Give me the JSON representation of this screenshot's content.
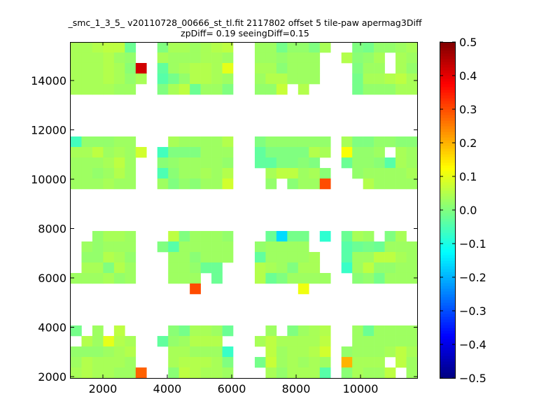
{
  "chart_data": {
    "type": "heatmap",
    "title": "_smc_1_3_5_ v20110728_00666_st_tl.fit 2117802 offset 5 tile-paw apermag3Diff",
    "subtitle": "zpDiff= 0.19 seeingDiff=0.15",
    "xlabel": "",
    "ylabel": "",
    "xlim": [
      1000,
      11760
    ],
    "ylim": [
      1943,
      15560
    ],
    "x_start": 1000,
    "dx": 336.25,
    "y_top": 15560,
    "dy": 425.5,
    "x_ticks": [
      2000,
      4000,
      6000,
      8000,
      10000
    ],
    "x_tick_labels": [
      "2000",
      "4000",
      "6000",
      "8000",
      "10000"
    ],
    "y_ticks": [
      2000,
      4000,
      6000,
      8000,
      10000,
      12000,
      14000
    ],
    "y_tick_labels": [
      "2000",
      "4000",
      "6000",
      "8000",
      "10000",
      "12000",
      "14000"
    ],
    "colormap": "jet",
    "clim": [
      -0.5,
      0.5
    ],
    "colorbar_ticks": [
      -0.5,
      -0.4,
      -0.3,
      -0.2,
      -0.1,
      0.0,
      0.1,
      0.2,
      0.3,
      0.4,
      0.5
    ],
    "colorbar_tick_labels": [
      "−0.5",
      "−0.4",
      "−0.3",
      "−0.2",
      "−0.1",
      "0.0",
      "0.1",
      "0.2",
      "0.3",
      "0.4",
      "0.5"
    ],
    "values": [
      [
        0.04,
        0.04,
        0.05,
        0.06,
        0.06,
        -0.02,
        null,
        null,
        0.0,
        0.04,
        0.04,
        0.03,
        0.04,
        0.05,
        0.06,
        null,
        null,
        0.03,
        0.03,
        -0.01,
        0.02,
        0.02,
        0.0,
        0.04,
        null,
        null,
        0.0,
        -0.01,
        0.02,
        0.02,
        0.03,
        0.04
      ],
      [
        0.04,
        0.04,
        0.04,
        0.05,
        0.03,
        0.02,
        null,
        null,
        0.04,
        0.03,
        0.03,
        0.03,
        0.04,
        0.04,
        0.03,
        null,
        null,
        0.03,
        0.03,
        0.02,
        0.03,
        0.03,
        0.03,
        null,
        null,
        0.05,
        0.01,
        0.02,
        0.04,
        null,
        0.04,
        0.03
      ],
      [
        0.04,
        0.04,
        0.04,
        0.05,
        0.04,
        0.01,
        0.42,
        null,
        -0.03,
        0.03,
        0.04,
        0.05,
        0.05,
        0.04,
        0.1,
        null,
        null,
        0.04,
        0.04,
        0.01,
        0.03,
        0.03,
        0.03,
        null,
        null,
        null,
        0.0,
        0.03,
        0.03,
        null,
        0.04,
        0.02
      ],
      [
        0.04,
        0.04,
        0.04,
        0.05,
        0.04,
        0.02,
        0.04,
        null,
        -0.04,
        -0.01,
        0.02,
        0.05,
        0.05,
        0.04,
        0.03,
        null,
        null,
        0.03,
        0.05,
        0.05,
        0.03,
        0.03,
        0.03,
        null,
        null,
        null,
        -0.01,
        0.04,
        0.04,
        0.05,
        0.06,
        0.04
      ],
      [
        0.04,
        0.04,
        0.04,
        0.04,
        0.03,
        0.03,
        null,
        null,
        0.0,
        0.04,
        0.06,
        -0.02,
        0.03,
        0.03,
        0.0,
        null,
        null,
        0.02,
        0.02,
        0.07,
        null,
        0.05,
        null,
        null,
        null,
        null,
        -0.01,
        0.02,
        0.02,
        0.02,
        0.04,
        0.04
      ],
      [
        null,
        null,
        null,
        null,
        null,
        null,
        null,
        null,
        null,
        null,
        null,
        null,
        null,
        null,
        null,
        null,
        null,
        null,
        null,
        null,
        null,
        null,
        null,
        null,
        null,
        null,
        null,
        null,
        null,
        null,
        null,
        null
      ],
      [
        null,
        null,
        null,
        null,
        null,
        null,
        null,
        null,
        null,
        null,
        null,
        null,
        null,
        null,
        null,
        null,
        null,
        null,
        null,
        null,
        null,
        null,
        null,
        null,
        null,
        null,
        null,
        null,
        null,
        null,
        null,
        null
      ],
      [
        null,
        null,
        null,
        null,
        null,
        null,
        null,
        null,
        null,
        null,
        null,
        null,
        null,
        null,
        null,
        null,
        null,
        null,
        null,
        null,
        null,
        null,
        null,
        null,
        null,
        null,
        null,
        null,
        null,
        null,
        null,
        null
      ],
      [
        null,
        null,
        null,
        null,
        null,
        null,
        null,
        null,
        null,
        null,
        null,
        null,
        null,
        null,
        null,
        null,
        null,
        null,
        null,
        null,
        null,
        null,
        null,
        null,
        null,
        null,
        null,
        null,
        null,
        null,
        null,
        null
      ],
      [
        -0.06,
        0.02,
        0.02,
        0.02,
        0.03,
        0.03,
        null,
        null,
        null,
        0.04,
        0.03,
        0.03,
        0.03,
        0.03,
        0.05,
        null,
        null,
        0.0,
        0.02,
        0.02,
        0.02,
        0.02,
        0.02,
        0.02,
        null,
        0.04,
        0.0,
        0.0,
        0.02,
        0.02,
        0.01,
        0.01
      ],
      [
        0.04,
        0.04,
        0.06,
        0.03,
        0.04,
        0.03,
        0.08,
        null,
        -0.06,
        0.0,
        0.0,
        0.0,
        0.03,
        0.03,
        0.03,
        null,
        null,
        -0.03,
        0.0,
        0.0,
        0.0,
        0.0,
        0.05,
        0.04,
        null,
        0.12,
        0.02,
        0.02,
        0.03,
        null,
        0.04,
        0.03
      ],
      [
        0.03,
        0.03,
        0.03,
        0.04,
        0.06,
        0.03,
        null,
        null,
        0.01,
        0.02,
        0.03,
        0.03,
        0.03,
        0.03,
        0.02,
        null,
        null,
        -0.03,
        -0.03,
        0.0,
        0.0,
        0.01,
        0.0,
        null,
        null,
        -0.02,
        0.02,
        0.02,
        0.01,
        -0.04,
        0.04,
        0.03
      ],
      [
        0.03,
        0.03,
        0.02,
        0.03,
        0.05,
        0.03,
        null,
        null,
        -0.05,
        0.01,
        0.03,
        0.03,
        0.04,
        0.03,
        0.05,
        null,
        null,
        null,
        0.04,
        0.06,
        0.06,
        0.03,
        0.04,
        0.01,
        null,
        null,
        0.02,
        0.03,
        0.03,
        0.03,
        0.03,
        0.04
      ],
      [
        0.03,
        0.03,
        0.03,
        0.04,
        0.03,
        0.03,
        null,
        null,
        0.03,
        0.0,
        0.02,
        0.01,
        0.03,
        0.03,
        0.08,
        null,
        null,
        null,
        0.02,
        null,
        0.01,
        0.03,
        0.03,
        0.3,
        null,
        null,
        null,
        0.05,
        0.03,
        0.03,
        0.03,
        0.03
      ],
      [
        null,
        null,
        null,
        null,
        null,
        null,
        null,
        null,
        null,
        null,
        null,
        null,
        null,
        null,
        null,
        null,
        null,
        null,
        null,
        null,
        null,
        null,
        null,
        null,
        null,
        null,
        null,
        null,
        null,
        null,
        null,
        null
      ],
      [
        null,
        null,
        null,
        null,
        null,
        null,
        null,
        null,
        null,
        null,
        null,
        null,
        null,
        null,
        null,
        null,
        null,
        null,
        null,
        null,
        null,
        null,
        null,
        null,
        null,
        null,
        null,
        null,
        null,
        null,
        null,
        null
      ],
      [
        null,
        null,
        null,
        null,
        null,
        null,
        null,
        null,
        null,
        null,
        null,
        null,
        null,
        null,
        null,
        null,
        null,
        null,
        null,
        null,
        null,
        null,
        null,
        null,
        null,
        null,
        null,
        null,
        null,
        null,
        null,
        null
      ],
      [
        null,
        null,
        null,
        null,
        null,
        null,
        null,
        null,
        null,
        null,
        null,
        null,
        null,
        null,
        null,
        null,
        null,
        null,
        null,
        null,
        null,
        null,
        null,
        null,
        null,
        null,
        null,
        null,
        null,
        null,
        null,
        null
      ],
      [
        null,
        null,
        0.02,
        0.04,
        0.04,
        0.03,
        null,
        null,
        null,
        0.06,
        0.0,
        0.03,
        0.03,
        0.03,
        0.02,
        null,
        null,
        null,
        -0.02,
        -0.16,
        -0.01,
        -0.01,
        null,
        -0.08,
        null,
        -0.02,
        0.04,
        0.03,
        null,
        0.0,
        0.04,
        null
      ],
      [
        null,
        0.03,
        0.02,
        0.03,
        0.03,
        0.03,
        null,
        null,
        0.0,
        -0.04,
        0.03,
        0.03,
        0.03,
        0.03,
        0.03,
        null,
        null,
        0.02,
        0.03,
        0.03,
        0.03,
        0.03,
        null,
        null,
        null,
        -0.04,
        -0.02,
        -0.01,
        -0.02,
        0.03,
        0.03,
        0.03
      ],
      [
        null,
        0.02,
        0.02,
        0.05,
        0.04,
        0.02,
        null,
        null,
        null,
        0.03,
        0.03,
        0.01,
        0.03,
        0.03,
        0.03,
        null,
        null,
        -0.03,
        0.03,
        0.03,
        0.03,
        0.03,
        0.04,
        null,
        null,
        -0.04,
        0.03,
        0.03,
        0.06,
        0.06,
        0.04,
        0.03
      ],
      [
        null,
        0.04,
        0.04,
        0.0,
        0.05,
        0.03,
        null,
        null,
        null,
        0.03,
        0.03,
        0.02,
        -0.02,
        -0.02,
        null,
        null,
        null,
        0.05,
        0.04,
        0.03,
        0.0,
        0.04,
        0.04,
        null,
        null,
        -0.07,
        0.03,
        0.06,
        0.02,
        0.02,
        0.03,
        0.03
      ],
      [
        0.03,
        0.03,
        0.03,
        0.04,
        0.02,
        0.03,
        null,
        null,
        null,
        0.03,
        0.03,
        0.03,
        null,
        -0.02,
        null,
        null,
        null,
        0.05,
        -0.02,
        0.0,
        0.03,
        0.03,
        0.03,
        0.03,
        null,
        null,
        0.01,
        0.02,
        -0.01,
        0.03,
        0.03,
        0.03
      ],
      [
        null,
        null,
        null,
        null,
        null,
        null,
        null,
        null,
        null,
        null,
        null,
        0.3,
        null,
        null,
        null,
        null,
        null,
        null,
        null,
        null,
        null,
        0.11,
        null,
        null,
        null,
        null,
        null,
        null,
        null,
        null,
        null,
        null
      ],
      [
        null,
        null,
        null,
        null,
        null,
        null,
        null,
        null,
        null,
        null,
        null,
        null,
        null,
        null,
        null,
        null,
        null,
        null,
        null,
        null,
        null,
        null,
        null,
        null,
        null,
        null,
        null,
        null,
        null,
        null,
        null,
        null
      ],
      [
        null,
        null,
        null,
        null,
        null,
        null,
        null,
        null,
        null,
        null,
        null,
        null,
        null,
        null,
        null,
        null,
        null,
        null,
        null,
        null,
        null,
        null,
        null,
        null,
        null,
        null,
        null,
        null,
        null,
        null,
        null,
        null
      ],
      [
        null,
        null,
        null,
        null,
        null,
        null,
        null,
        null,
        null,
        null,
        null,
        null,
        null,
        null,
        null,
        null,
        null,
        null,
        null,
        null,
        null,
        null,
        null,
        null,
        null,
        null,
        null,
        null,
        null,
        null,
        null,
        null
      ],
      [
        -0.01,
        null,
        0.03,
        null,
        0.06,
        null,
        null,
        null,
        null,
        0.01,
        -0.01,
        0.04,
        0.04,
        0.03,
        -0.02,
        null,
        null,
        null,
        0.03,
        null,
        0.0,
        0.03,
        0.04,
        0.05,
        null,
        null,
        0.03,
        -0.02,
        0.03,
        0.03,
        0.03,
        0.03
      ],
      [
        null,
        0.05,
        0.03,
        0.1,
        0.05,
        0.04,
        null,
        null,
        -0.03,
        0.02,
        0.03,
        0.05,
        0.05,
        0.05,
        null,
        null,
        null,
        0.04,
        0.06,
        0.04,
        0.04,
        0.04,
        0.04,
        0.06,
        null,
        null,
        0.03,
        0.03,
        0.03,
        0.03,
        0.03,
        0.03
      ],
      [
        0.02,
        0.02,
        0.02,
        0.03,
        0.04,
        0.05,
        null,
        null,
        null,
        0.04,
        0.04,
        0.03,
        0.03,
        0.03,
        -0.07,
        null,
        null,
        null,
        0.06,
        0.03,
        0.04,
        0.04,
        0.05,
        0.08,
        null,
        0.02,
        0.03,
        0.03,
        0.03,
        0.04,
        0.06,
        0.04
      ],
      [
        0.03,
        0.05,
        0.04,
        0.04,
        0.04,
        0.03,
        null,
        null,
        null,
        0.04,
        0.05,
        0.05,
        0.05,
        0.04,
        0.0,
        null,
        null,
        -0.01,
        0.07,
        0.03,
        0.04,
        0.03,
        0.04,
        0.03,
        null,
        0.2,
        0.04,
        0.04,
        0.04,
        null,
        0.06,
        0.03
      ],
      [
        0.04,
        0.05,
        0.04,
        0.04,
        0.03,
        0.03,
        0.28,
        null,
        null,
        0.01,
        0.06,
        0.05,
        0.04,
        0.04,
        0.03,
        null,
        null,
        null,
        0.04,
        0.02,
        0.04,
        0.04,
        0.04,
        -0.04,
        null,
        0.01,
        0.04,
        0.03,
        0.03,
        0.06,
        null,
        0.03
      ]
    ]
  }
}
